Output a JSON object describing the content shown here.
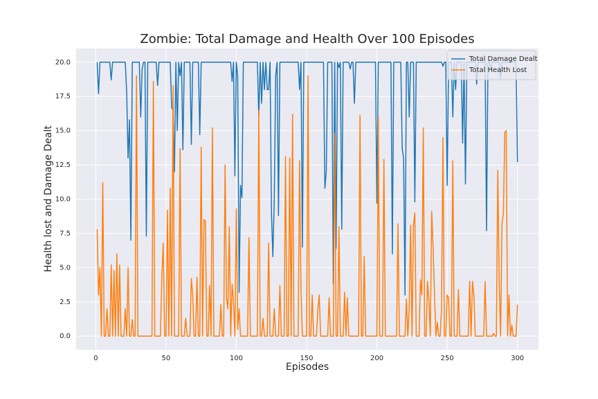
{
  "chart_data": {
    "type": "line",
    "title": "Zombie: Total Damage and Health Over 100 Episodes",
    "x_label": "Episodes",
    "y_label": "Health lost and Damage Dealt",
    "grid": true,
    "legend": "upper right",
    "xlim": [
      -13.95,
      314.95
    ],
    "xticks": [
      0,
      50,
      100,
      150,
      200,
      250,
      300
    ],
    "ylim": [
      -1.0,
      21.0
    ],
    "yticks": [
      {
        "value": 0,
        "label": "0.0"
      },
      {
        "value": 2.5,
        "label": "2.5"
      },
      {
        "value": 5,
        "label": "5.0"
      },
      {
        "value": 7.5,
        "label": "7.5"
      },
      {
        "value": 10,
        "label": "10.0"
      },
      {
        "value": 12.5,
        "label": "12.5"
      },
      {
        "value": 15,
        "label": "15.0"
      },
      {
        "value": 17.5,
        "label": "17.5"
      },
      {
        "value": 20,
        "label": "20.0"
      }
    ],
    "x": [
      1,
      2,
      3,
      4,
      5,
      6,
      7,
      8,
      9,
      10,
      11,
      12,
      13,
      14,
      15,
      16,
      17,
      18,
      19,
      20,
      21,
      22,
      23,
      24,
      25,
      26,
      27,
      28,
      29,
      30,
      31,
      32,
      33,
      34,
      35,
      36,
      37,
      38,
      39,
      40,
      41,
      42,
      43,
      44,
      45,
      46,
      47,
      48,
      49,
      50,
      51,
      52,
      53,
      54,
      55,
      56,
      57,
      58,
      59,
      60,
      61,
      62,
      63,
      64,
      65,
      66,
      67,
      68,
      69,
      70,
      71,
      72,
      73,
      74,
      75,
      76,
      77,
      78,
      79,
      80,
      81,
      82,
      83,
      84,
      85,
      86,
      87,
      88,
      89,
      90,
      91,
      92,
      93,
      94,
      95,
      96,
      97,
      98,
      99,
      100,
      101,
      102,
      103,
      104,
      105,
      106,
      107,
      108,
      109,
      110,
      111,
      112,
      113,
      114,
      115,
      116,
      117,
      118,
      119,
      120,
      121,
      122,
      123,
      124,
      125,
      126,
      127,
      128,
      129,
      130,
      131,
      132,
      133,
      134,
      135,
      136,
      137,
      138,
      139,
      140,
      141,
      142,
      143,
      144,
      145,
      146,
      147,
      148,
      149,
      150,
      151,
      152,
      153,
      154,
      155,
      156,
      157,
      158,
      159,
      160,
      161,
      162,
      163,
      164,
      165,
      166,
      167,
      168,
      169,
      170,
      171,
      172,
      173,
      174,
      175,
      176,
      177,
      178,
      179,
      180,
      181,
      182,
      183,
      184,
      185,
      186,
      187,
      188,
      189,
      190,
      191,
      192,
      193,
      194,
      195,
      196,
      197,
      198,
      199,
      200,
      201,
      202,
      203,
      204,
      205,
      206,
      207,
      208,
      209,
      210,
      211,
      212,
      213,
      214,
      215,
      216,
      217,
      218,
      219,
      220,
      221,
      222,
      223,
      224,
      225,
      226,
      227,
      228,
      229,
      230,
      231,
      232,
      233,
      234,
      235,
      236,
      237,
      238,
      239,
      240,
      241,
      242,
      243,
      244,
      245,
      246,
      247,
      248,
      249,
      250,
      251,
      252,
      253,
      254,
      255,
      256,
      257,
      258,
      259,
      260,
      261,
      262,
      263,
      264,
      265,
      266,
      267,
      268,
      269,
      270,
      271,
      272,
      273,
      274,
      275,
      276,
      277,
      278,
      279,
      280,
      281,
      282,
      283,
      284,
      285,
      286,
      287,
      288,
      289,
      290,
      291,
      292,
      293,
      294,
      295,
      296,
      297,
      298,
      299,
      300
    ],
    "series": [
      {
        "name": "Total Damage Dealt",
        "color": "#1f77b4",
        "values": [
          20,
          17.7,
          20,
          20,
          20,
          20,
          20,
          20,
          20,
          20,
          18.7,
          20,
          20,
          20,
          20,
          20,
          20,
          20,
          20,
          20,
          20,
          17.8,
          13,
          15.8,
          7,
          20,
          20,
          20,
          20,
          20,
          20,
          16,
          19.5,
          20,
          20,
          7.3,
          20,
          20,
          20,
          20,
          20,
          20,
          20,
          18.3,
          20,
          20,
          20,
          20,
          20,
          20,
          20,
          20,
          20,
          16.7,
          16.5,
          12,
          20,
          15,
          20,
          19,
          20,
          13.6,
          20,
          20,
          20,
          20,
          20,
          14,
          20,
          20,
          20,
          20,
          20,
          14.7,
          20,
          20,
          20,
          20,
          20,
          20,
          20,
          20,
          20,
          20,
          20,
          20,
          20,
          20,
          20,
          20,
          20,
          20,
          20,
          20,
          20,
          20,
          18.6,
          20,
          11.7,
          20,
          19,
          3.2,
          11,
          10.1,
          20,
          20,
          20,
          20,
          20,
          20,
          20,
          20,
          20,
          20,
          20,
          16,
          20,
          17,
          20,
          18,
          20,
          18,
          18,
          20,
          9,
          5.8,
          10,
          19,
          20,
          8.8,
          20,
          20,
          20,
          20,
          20,
          20,
          20,
          20,
          20,
          20,
          20,
          20,
          20,
          20,
          18,
          20,
          6.5,
          20,
          20,
          20,
          20,
          20,
          20,
          20,
          20,
          20,
          20,
          20,
          20,
          20,
          20,
          20,
          10.8,
          12,
          20,
          20,
          20,
          20,
          3.8,
          20,
          6.4,
          20,
          19.6,
          20,
          7.8,
          20,
          20,
          20,
          20,
          20,
          19.5,
          20,
          20,
          17,
          20,
          20,
          20,
          20,
          20,
          20,
          20,
          20,
          20,
          20,
          20,
          20,
          20,
          20,
          20,
          9.7,
          20,
          20,
          20,
          20,
          20,
          20,
          20,
          20,
          20,
          20,
          6,
          20,
          20,
          20,
          20,
          20,
          20,
          13.7,
          13,
          3,
          20,
          20,
          16,
          20,
          20,
          20,
          9.8,
          20,
          20,
          20,
          20,
          20,
          20,
          20,
          20,
          20,
          20,
          20,
          20,
          20,
          20,
          20,
          20,
          20,
          20,
          20,
          19.7,
          20,
          20,
          11,
          20,
          20,
          20,
          16,
          20,
          18,
          20,
          20,
          20,
          20,
          14.1,
          20,
          11.1,
          20,
          20,
          20,
          20,
          20,
          20,
          20,
          18.4,
          20,
          20,
          20,
          20,
          20,
          20,
          7.7,
          20,
          20,
          19.5,
          20,
          20,
          20,
          20,
          20,
          20,
          18.8,
          20,
          20,
          20,
          20,
          20,
          20,
          20,
          20,
          20,
          20,
          20,
          12.7
        ]
      },
      {
        "name": "Total Health Lost",
        "color": "#ff7f0e",
        "values": [
          7.8,
          3,
          5,
          0,
          11.2,
          0,
          0,
          2,
          0,
          0,
          5.2,
          0,
          4.8,
          0,
          6,
          0,
          5.2,
          0,
          0,
          0,
          2,
          0,
          5,
          0,
          0,
          1.2,
          0,
          0,
          19,
          0,
          0,
          0,
          0,
          0,
          0,
          0,
          0,
          0,
          0,
          0,
          18.6,
          0,
          0,
          0,
          0,
          0,
          4.3,
          6.8,
          0,
          0,
          9.2,
          0,
          10.8,
          0,
          18.3,
          0,
          0,
          0,
          0,
          13.7,
          0,
          0,
          0,
          1.3,
          0,
          0,
          0,
          4.2,
          3,
          0,
          0,
          4.3,
          0,
          0,
          13.8,
          0,
          8.5,
          8.4,
          0,
          0,
          3.7,
          0,
          15.2,
          0,
          0,
          0,
          0,
          0,
          2.3,
          0,
          0,
          12.5,
          2.8,
          2,
          8,
          0,
          3.8,
          2.5,
          0,
          9.3,
          0.5,
          2,
          0,
          0,
          0,
          0,
          0,
          0,
          7.2,
          0,
          0,
          0,
          0,
          0,
          0,
          16.5,
          0,
          0,
          1.3,
          0,
          0,
          0,
          6.8,
          0,
          0,
          0,
          2,
          0,
          0,
          0,
          3.7,
          0,
          0,
          0,
          13.1,
          0,
          0,
          13,
          0,
          16.2,
          0,
          0,
          0,
          0,
          12.8,
          3.5,
          0,
          0,
          0,
          0,
          19,
          0,
          0,
          3,
          0,
          0,
          0,
          2,
          3,
          0,
          0,
          0,
          0,
          0,
          0,
          2.8,
          0,
          0,
          0,
          14.8,
          0,
          0,
          8,
          0,
          0,
          0,
          3.2,
          0,
          2.8,
          0,
          0,
          0,
          0,
          0,
          0,
          0,
          0,
          16.1,
          0,
          0,
          5.8,
          0,
          0,
          0,
          0,
          0,
          0,
          0,
          0,
          0,
          16,
          0,
          0,
          0,
          12.9,
          0,
          0,
          0,
          0,
          0,
          0,
          0,
          0,
          0,
          8.2,
          0,
          0,
          0,
          0,
          0,
          2.7,
          0,
          2,
          8.1,
          0,
          8.1,
          9,
          0,
          0,
          0,
          4.1,
          3,
          15.2,
          0,
          0,
          4,
          2.6,
          0,
          9.1,
          6.4,
          3,
          0,
          1,
          0,
          0,
          2,
          14.5,
          0,
          0,
          3,
          2.8,
          0,
          0,
          12.8,
          0,
          0,
          0,
          3.4,
          0,
          0,
          0,
          0,
          0,
          0,
          0,
          4,
          0,
          4,
          3,
          0,
          0,
          0,
          0,
          0,
          0,
          0,
          4,
          0,
          0,
          0,
          0,
          0,
          0.2,
          0,
          0,
          12.1,
          4,
          0,
          8.2,
          9,
          14.9,
          15,
          0,
          3,
          0,
          0.8,
          0,
          0,
          0,
          2.3
        ]
      }
    ]
  }
}
